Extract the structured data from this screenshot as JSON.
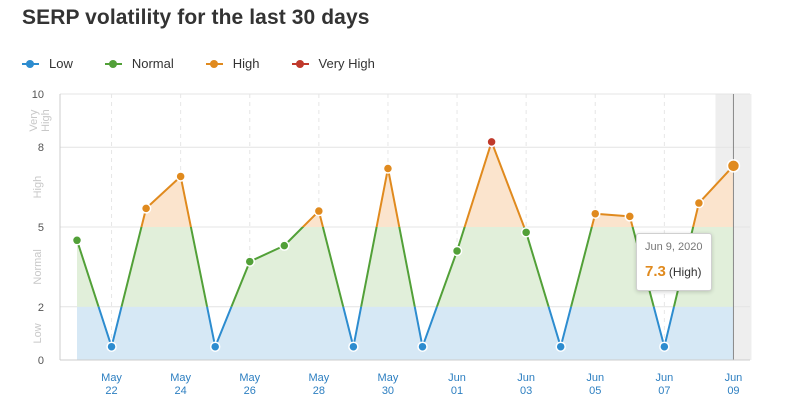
{
  "title": "SERP volatility for the last 30 days",
  "legend": [
    {
      "label": "Low",
      "color": "#2d8ccf"
    },
    {
      "label": "Normal",
      "color": "#52a038"
    },
    {
      "label": "High",
      "color": "#e08a1e"
    },
    {
      "label": "Very High",
      "color": "#c0392b"
    }
  ],
  "tooltip": {
    "date": "Jun 9, 2020",
    "value": "7.3",
    "level": "(High)"
  },
  "chart_data": {
    "type": "line",
    "title": "SERP volatility for the last 30 days",
    "xlabel": "",
    "ylabel": "",
    "ylim": [
      0,
      10
    ],
    "y_ticks": [
      "0",
      "2",
      "5",
      "8",
      "10"
    ],
    "band_labels": [
      {
        "label": "Low",
        "from": 0,
        "to": 2
      },
      {
        "label": "Normal",
        "from": 2,
        "to": 5
      },
      {
        "label": "High",
        "from": 5,
        "to": 8
      },
      {
        "label": "Very High",
        "from": 8,
        "to": 10
      }
    ],
    "x_ticks": [
      {
        "month": "May",
        "day": "22",
        "index": 1
      },
      {
        "month": "May",
        "day": "24",
        "index": 3
      },
      {
        "month": "May",
        "day": "26",
        "index": 5
      },
      {
        "month": "May",
        "day": "28",
        "index": 7
      },
      {
        "month": "May",
        "day": "30",
        "index": 9
      },
      {
        "month": "Jun",
        "day": "01",
        "index": 11
      },
      {
        "month": "Jun",
        "day": "03",
        "index": 13
      },
      {
        "month": "Jun",
        "day": "05",
        "index": 15
      },
      {
        "month": "Jun",
        "day": "07",
        "index": 17
      },
      {
        "month": "Jun",
        "day": "09",
        "index": 19
      }
    ],
    "series": [
      {
        "values": [
          4.5,
          0.5,
          5.7,
          6.9,
          0.5,
          3.7,
          4.3,
          5.6,
          0.5,
          7.2,
          0.5,
          4.1,
          8.2,
          4.8,
          0.5,
          5.5,
          5.4,
          0.5,
          5.9,
          7.3
        ]
      }
    ],
    "highlighted_index": 19
  }
}
